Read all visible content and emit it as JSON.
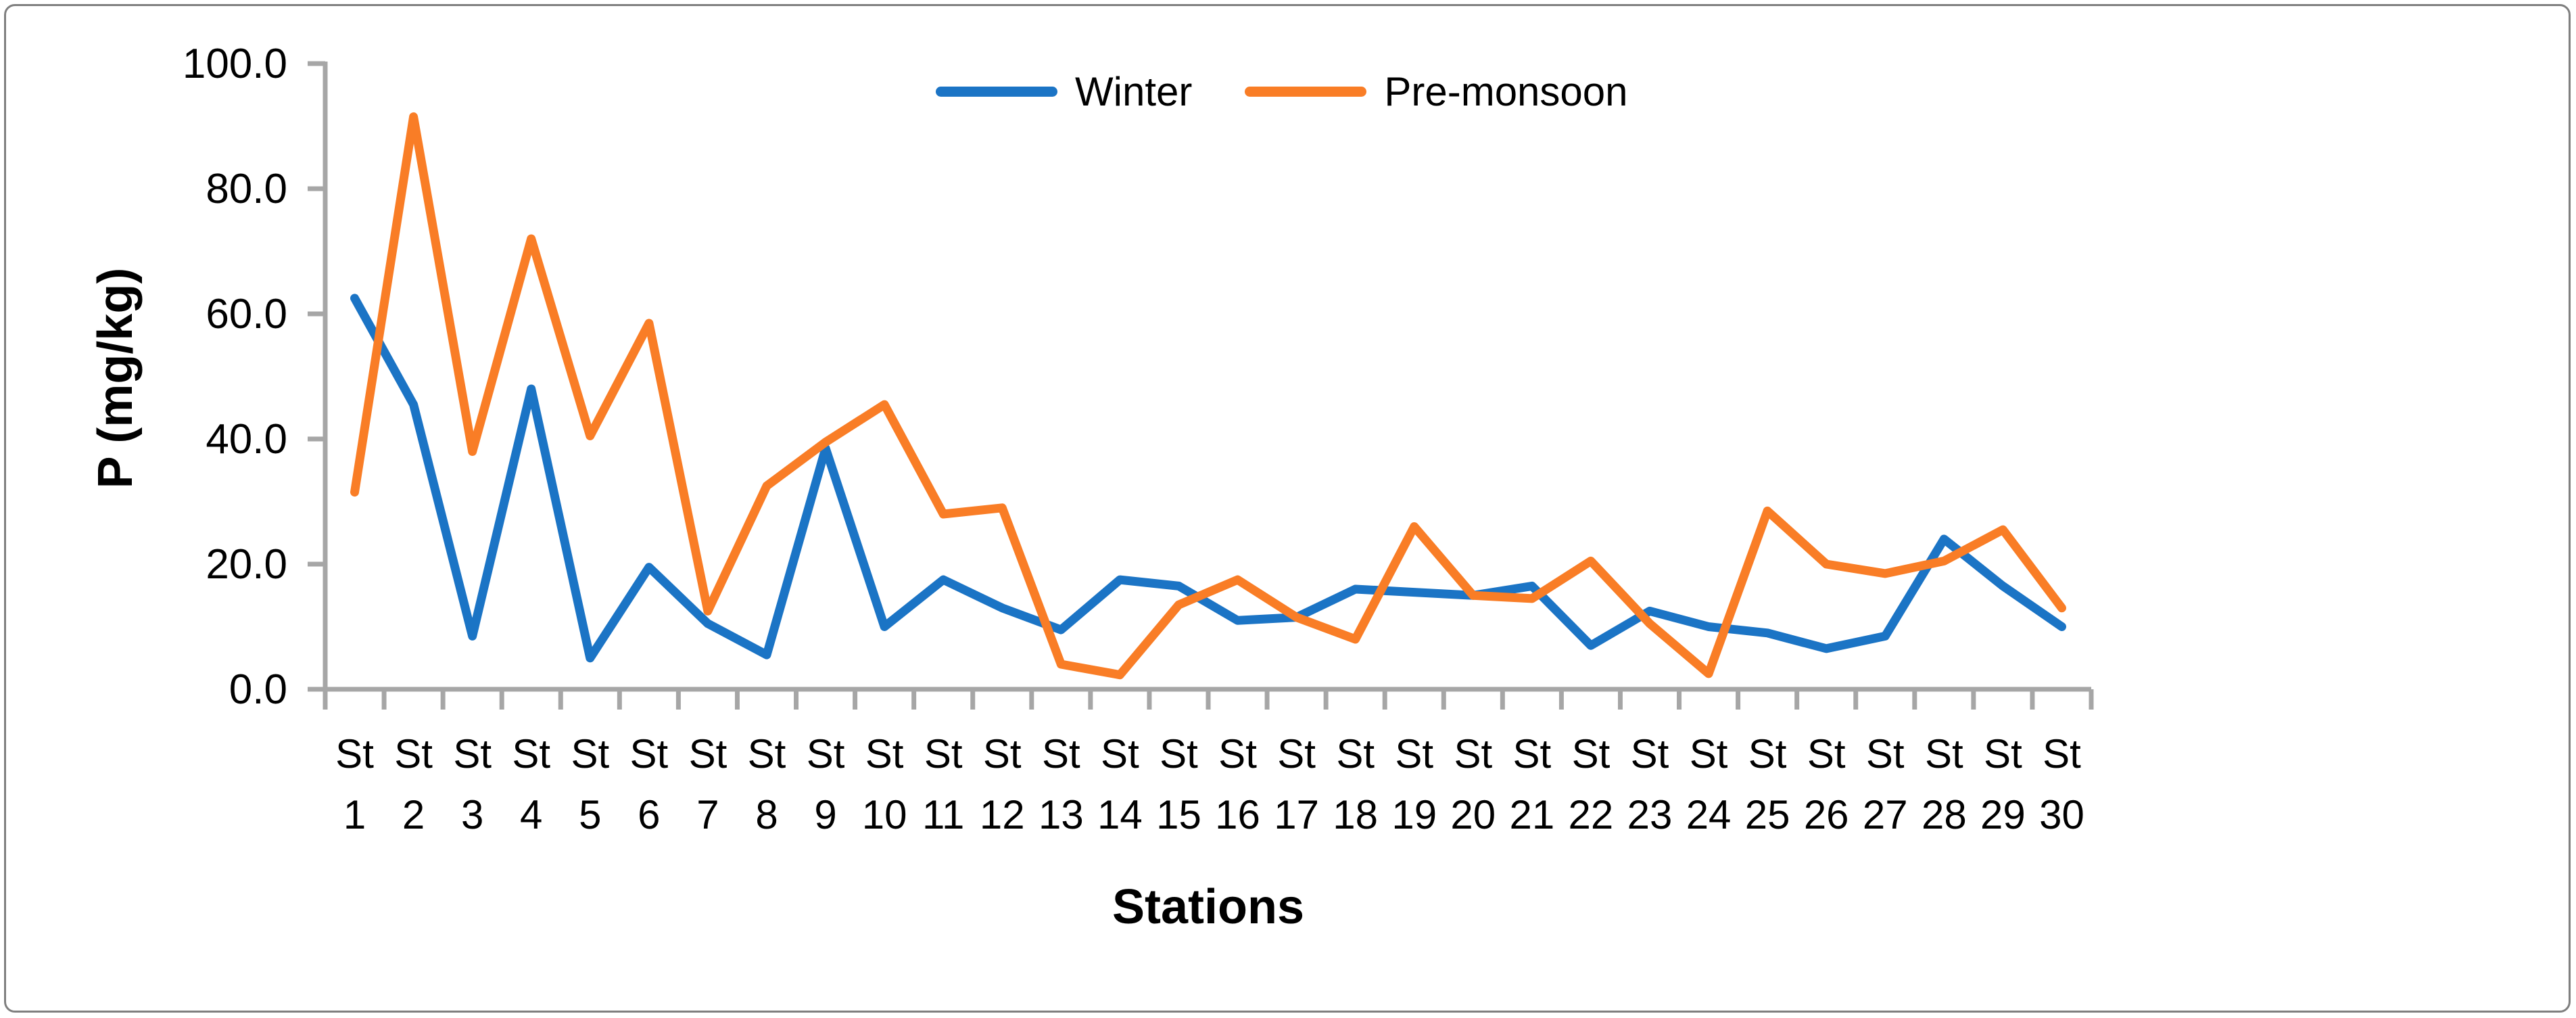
{
  "figure": {
    "background": "#FFFFFF",
    "border_color": "#7F7F7F"
  },
  "axes": {
    "axis_color": "#A6A6A6",
    "text_color": "#000000"
  },
  "chart_data": {
    "type": "line",
    "title": "",
    "xlabel": "Stations",
    "ylabel": "P (mg/kg)",
    "ylim": [
      0,
      100
    ],
    "ytick_step": 20,
    "ytick_labels": [
      "0.0",
      "20.0",
      "40.0",
      "60.0",
      "80.0",
      "100.0"
    ],
    "grid": false,
    "legend_position": "top-center",
    "categories": [
      "St 1",
      "St 2",
      "St 3",
      "St 4",
      "St 5",
      "St 6",
      "St 7",
      "St 8",
      "St 9",
      "St 10",
      "St 11",
      "St 12",
      "St 13",
      "St 14",
      "St 15",
      "St 16",
      "St 17",
      "St 18",
      "St 19",
      "St 20",
      "St 21",
      "St 22",
      "St 23",
      "St 24",
      "St 25",
      "St 26",
      "St 27",
      "St 28",
      "St 29",
      "St 30"
    ],
    "series": [
      {
        "name": "Winter",
        "color": "#1B74C5",
        "values": [
          62.5,
          45.5,
          8.5,
          48.0,
          5.0,
          19.5,
          10.5,
          5.5,
          38.5,
          10.0,
          17.5,
          13.0,
          9.5,
          17.5,
          16.5,
          11.0,
          11.5,
          16.0,
          15.5,
          15.0,
          16.5,
          7.0,
          12.5,
          10.0,
          9.0,
          6.5,
          8.5,
          24.0,
          16.5,
          10.0
        ]
      },
      {
        "name": "Pre-monsoon",
        "color": "#F97D26",
        "values": [
          31.5,
          91.5,
          38.0,
          72.0,
          40.5,
          58.5,
          12.5,
          32.5,
          39.5,
          45.5,
          28.0,
          29.0,
          4.0,
          2.3,
          13.5,
          17.5,
          11.5,
          8.0,
          26.0,
          15.0,
          14.5,
          20.5,
          10.5,
          2.5,
          28.5,
          20.0,
          18.5,
          20.5,
          25.5,
          13.0
        ]
      }
    ]
  }
}
